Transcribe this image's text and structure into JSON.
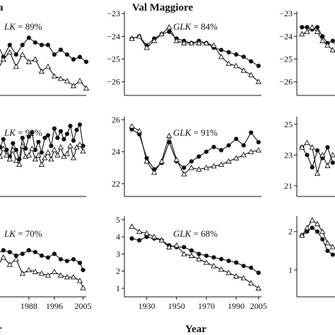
{
  "texts": {
    "title_left": "a",
    "title_center": "Val Maggiore",
    "xlabel_left": "r",
    "xlabel_center": "Year"
  },
  "chart_data": [
    {
      "type": "line",
      "x": [
        1978,
        1980,
        1982,
        1984,
        1986,
        1988,
        1990,
        1992,
        1994,
        1996,
        1998,
        2000,
        2002,
        2004,
        2006
      ],
      "xlim": [
        1978.5,
        2006
      ],
      "ylim": [
        -26.5,
        -23
      ],
      "yticks": [],
      "xticks": [],
      "glk_prefix": "LK",
      "glk_value": "= 89%",
      "series": [
        {
          "marker": "circle",
          "values": [
            -24.3,
            -24.9,
            -24.4,
            -24.8,
            -24.4,
            -24.1,
            -24.3,
            -24.4,
            -24.4,
            -24.8,
            -24.6,
            -24.8,
            -25.0,
            -24.9,
            -25.1
          ]
        },
        {
          "marker": "triangle",
          "values": [
            -25.5,
            -25.0,
            -24.7,
            -25.3,
            -24.8,
            -25.1,
            -25.0,
            -25.5,
            -25.3,
            -25.7,
            -25.8,
            -25.9,
            -26.1,
            -25.9,
            -26.2
          ]
        }
      ]
    },
    {
      "type": "line",
      "x": [
        1920,
        1925,
        1930,
        1935,
        1940,
        1945,
        1950,
        1955,
        1960,
        1965,
        1970,
        1975,
        1980,
        1985,
        1990,
        1995,
        2000,
        2005
      ],
      "xlim": [
        1915,
        2007
      ],
      "ylim": [
        -26.6,
        -22.9
      ],
      "yticks": [
        -23,
        -24,
        -25,
        -26
      ],
      "xticks": [],
      "glk_prefix": "GLK",
      "glk_value": "= 84%",
      "series": [
        {
          "marker": "circle",
          "values": [
            -24.1,
            -24.0,
            -24.4,
            -24.1,
            -23.9,
            -23.8,
            -24.1,
            -24.2,
            -24.3,
            -24.2,
            -24.3,
            -24.5,
            -24.6,
            -24.7,
            -24.8,
            -24.9,
            -25.1,
            -25.3
          ]
        },
        {
          "marker": "triangle",
          "values": [
            -24.1,
            -24.0,
            -24.5,
            -24.2,
            -23.9,
            -23.6,
            -24.2,
            -24.3,
            -24.3,
            -24.3,
            -24.3,
            -24.4,
            -24.9,
            -25.2,
            -25.3,
            -25.5,
            -25.7,
            -26.0
          ]
        }
      ]
    },
    {
      "type": "line",
      "x": [
        1992,
        1994,
        1996,
        1998,
        2000,
        2002,
        2004,
        2006
      ],
      "xlim": [
        1990,
        2006
      ],
      "ylim": [
        -26.6,
        -22.9
      ],
      "yticks": [
        -23,
        -24,
        -25,
        -26
      ],
      "xticks": [],
      "glk_prefix": "",
      "glk_value": "",
      "series": [
        {
          "marker": "circle",
          "values": [
            -23.6,
            -23.6,
            -23.7,
            -23.6,
            -24.0,
            -24.3,
            -24.2,
            -24.5
          ]
        },
        {
          "marker": "triangle",
          "values": [
            -23.9,
            -23.8,
            -23.6,
            -23.8,
            -24.2,
            -24.4,
            -24.6,
            -24.7
          ]
        }
      ]
    },
    {
      "type": "line",
      "x": [
        1978,
        1979,
        1980,
        1981,
        1982,
        1983,
        1984,
        1985,
        1986,
        1987,
        1988,
        1989,
        1990,
        1991,
        1992,
        1993,
        1994,
        1995,
        1996,
        1997,
        1998,
        1999,
        2000,
        2001,
        2002,
        2003,
        2004,
        2005
      ],
      "xlim": [
        1978.5,
        2006
      ],
      "ylim": [
        20.5,
        26.5
      ],
      "yticks": [],
      "xticks": [],
      "glk_prefix": "LK",
      "glk_value": "= 92%",
      "series": [
        {
          "marker": "circle",
          "values": [
            23.4,
            24.2,
            24.8,
            24.0,
            23.5,
            24.5,
            24.0,
            23.3,
            24.9,
            24.1,
            25.0,
            25.3,
            24.0,
            24.6,
            23.8,
            24.9,
            25.1,
            24.3,
            25.6,
            24.9,
            25.4,
            24.8,
            25.2,
            25.8,
            24.7,
            25.5,
            25.9,
            24.3
          ]
        },
        {
          "marker": "triangle",
          "values": [
            23.8,
            23.5,
            24.1,
            23.6,
            23.3,
            24.0,
            23.2,
            22.9,
            24.3,
            23.5,
            23.6,
            24.1,
            23.3,
            23.6,
            22.9,
            23.4,
            23.8,
            23.3,
            24.0,
            23.6,
            24.2,
            23.5,
            23.7,
            24.3,
            23.4,
            24.2,
            24.4,
            23.9
          ]
        }
      ]
    },
    {
      "type": "line",
      "x": [
        1920,
        1925,
        1930,
        1935,
        1940,
        1945,
        1950,
        1955,
        1960,
        1965,
        1970,
        1975,
        1980,
        1985,
        1990,
        1995,
        2000,
        2005
      ],
      "xlim": [
        1915,
        2007
      ],
      "ylim": [
        21.2,
        26.2
      ],
      "yticks": [
        26,
        24,
        22
      ],
      "xticks": [],
      "glk_prefix": "GLK",
      "glk_value": "= 91%",
      "series": [
        {
          "marker": "circle",
          "values": [
            25.4,
            25.1,
            23.6,
            22.9,
            23.3,
            24.6,
            23.4,
            23.0,
            23.4,
            23.7,
            24.0,
            24.3,
            24.1,
            24.4,
            24.8,
            24.4,
            25.2,
            24.6
          ]
        },
        {
          "marker": "triangle",
          "values": [
            25.6,
            25.3,
            23.4,
            22.7,
            23.4,
            25.0,
            23.5,
            22.6,
            23.0,
            22.9,
            23.0,
            23.1,
            23.2,
            23.4,
            23.6,
            23.8,
            24.0,
            24.1
          ]
        }
      ]
    },
    {
      "type": "line",
      "x": [
        1992,
        1994,
        1996,
        1998,
        2000,
        2002,
        2004
      ],
      "xlim": [
        1990,
        2006
      ],
      "ylim": [
        20.3,
        25.5
      ],
      "yticks": [
        25,
        23,
        21
      ],
      "xticks": [],
      "glk_prefix": "",
      "glk_value": "",
      "series": [
        {
          "marker": "circle",
          "values": [
            23.5,
            23.0,
            22.2,
            23.3,
            22.8,
            23.5,
            22.5
          ]
        },
        {
          "marker": "triangle",
          "values": [
            23.5,
            23.8,
            23.5,
            21.8,
            23.0,
            22.3,
            23.0
          ]
        }
      ]
    },
    {
      "type": "line",
      "x": [
        1978,
        1980,
        1982,
        1984,
        1986,
        1988,
        1990,
        1992,
        1994,
        1996,
        1998,
        2000,
        2002,
        2004,
        2005
      ],
      "xlim": [
        1978.5,
        2006
      ],
      "ylim": [
        0.5,
        5.0
      ],
      "yticks": [],
      "xticks": [
        1988,
        1996,
        2005
      ],
      "glk_prefix": "LK",
      "glk_value": "= 70%",
      "series": [
        {
          "marker": "circle",
          "values": [
            2.9,
            3.1,
            3.0,
            2.8,
            2.9,
            3.1,
            3.0,
            2.8,
            2.7,
            2.9,
            2.6,
            2.5,
            2.6,
            2.4,
            2.0
          ]
        },
        {
          "marker": "triangle",
          "values": [
            2.2,
            2.7,
            2.3,
            2.6,
            1.8,
            2.0,
            1.9,
            1.8,
            1.7,
            1.9,
            1.7,
            1.6,
            1.6,
            1.4,
            1.0
          ]
        }
      ]
    },
    {
      "type": "line",
      "x": [
        1920,
        1925,
        1930,
        1935,
        1940,
        1945,
        1950,
        1955,
        1960,
        1965,
        1970,
        1975,
        1980,
        1985,
        1990,
        1995,
        2000,
        2005
      ],
      "xlim": [
        1915,
        2007
      ],
      "ylim": [
        0.5,
        5.2
      ],
      "yticks": [
        5,
        4,
        3,
        2,
        1
      ],
      "xticks": [
        1930,
        1950,
        1970,
        1990,
        2005
      ],
      "glk_prefix": "GLK",
      "glk_value": "= 68%",
      "series": [
        {
          "marker": "circle",
          "values": [
            3.9,
            3.8,
            4.0,
            3.9,
            3.8,
            3.5,
            3.4,
            3.4,
            3.2,
            3.0,
            2.9,
            2.8,
            2.7,
            2.6,
            2.5,
            2.3,
            2.2,
            1.9
          ]
        },
        {
          "marker": "triangle",
          "values": [
            4.6,
            4.3,
            4.2,
            4.0,
            3.8,
            3.4,
            3.5,
            3.0,
            2.9,
            2.7,
            2.5,
            2.3,
            2.1,
            1.9,
            1.7,
            1.6,
            1.3,
            1.0
          ]
        }
      ]
    },
    {
      "type": "line",
      "x": [
        1992,
        1994,
        1996,
        1998,
        2000,
        2002,
        2004
      ],
      "xlim": [
        1990,
        2006
      ],
      "ylim": [
        0.3,
        2.4
      ],
      "yticks": [
        2,
        1
      ],
      "xticks": [],
      "glk_prefix": "",
      "glk_value": "",
      "series": [
        {
          "marker": "circle",
          "values": [
            1.9,
            2.0,
            2.1,
            2.0,
            1.8,
            1.5,
            1.4
          ]
        },
        {
          "marker": "triangle",
          "values": [
            1.9,
            2.1,
            2.3,
            2.2,
            2.0,
            1.7,
            1.6
          ]
        }
      ]
    }
  ]
}
